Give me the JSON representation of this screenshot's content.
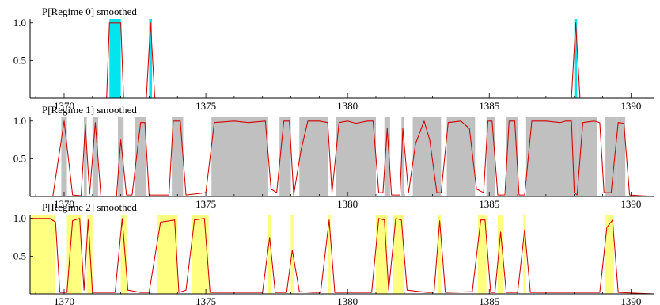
{
  "chart_data": [
    {
      "type": "area",
      "title": "P[Regime 0] smoothed",
      "xlabel": "",
      "ylabel": "",
      "xlim": [
        1368.8,
        1390.8
      ],
      "ylim": [
        0,
        1.05
      ],
      "xticks": [
        "1370",
        "1375",
        "1380",
        "1385",
        "1390"
      ],
      "yticks": [
        "0.5",
        "1.0"
      ],
      "shade_color": "#00e5ee",
      "line_color": "#d40000",
      "shaded_intervals": [
        [
          1371.6,
          1372.0
        ],
        [
          1373.0,
          1373.1
        ],
        [
          1388.0,
          1388.1
        ]
      ],
      "series": [
        {
          "values": [
            [
              1368.8,
              0
            ],
            [
              1371.5,
              0
            ],
            [
              1371.6,
              1.0
            ],
            [
              1372.0,
              1.0
            ],
            [
              1372.1,
              0
            ],
            [
              1372.9,
              0
            ],
            [
              1373.05,
              1.0
            ],
            [
              1373.2,
              0
            ],
            [
              1387.9,
              0
            ],
            [
              1388.05,
              1.0
            ],
            [
              1388.2,
              0
            ],
            [
              1390.8,
              0
            ]
          ]
        }
      ]
    },
    {
      "type": "area",
      "title": "P[Regime 1] smoothed",
      "xlabel": "",
      "ylabel": "",
      "xlim": [
        1368.8,
        1390.8
      ],
      "ylim": [
        0,
        1.05
      ],
      "xticks": [
        "1370",
        "1375",
        "1380",
        "1385",
        "1390"
      ],
      "yticks": [
        "0.5",
        "1.0"
      ],
      "shade_color": "#c0c0c0",
      "line_color": "#d40000",
      "shaded_intervals": [
        [
          1369.9,
          1370.1
        ],
        [
          1370.7,
          1370.8
        ],
        [
          1371.0,
          1371.2
        ],
        [
          1371.9,
          1372.1
        ],
        [
          1372.5,
          1372.9
        ],
        [
          1373.8,
          1374.2
        ],
        [
          1375.2,
          1377.2
        ],
        [
          1377.6,
          1378.0
        ],
        [
          1378.3,
          1379.3
        ],
        [
          1379.6,
          1381.0
        ],
        [
          1381.3,
          1381.5
        ],
        [
          1381.9,
          1382.0
        ],
        [
          1382.3,
          1383.3
        ],
        [
          1383.5,
          1384.5
        ],
        [
          1384.9,
          1385.2
        ],
        [
          1385.6,
          1386.0
        ],
        [
          1386.3,
          1387.6
        ],
        [
          1387.6,
          1388.1
        ],
        [
          1388.1,
          1388.8
        ],
        [
          1389.1,
          1389.5
        ],
        [
          1389.5,
          1389.8
        ]
      ],
      "series": [
        {
          "values": [
            [
              1368.8,
              0
            ],
            [
              1369.6,
              0
            ],
            [
              1370.0,
              1.0
            ],
            [
              1370.3,
              0.02
            ],
            [
              1370.6,
              0.01
            ],
            [
              1370.75,
              0.95
            ],
            [
              1370.9,
              0.03
            ],
            [
              1371.1,
              0.98
            ],
            [
              1371.3,
              0.0
            ],
            [
              1371.85,
              0.0
            ],
            [
              1372.0,
              0.75
            ],
            [
              1372.2,
              0.02
            ],
            [
              1372.4,
              0.02
            ],
            [
              1372.7,
              0.98
            ],
            [
              1372.85,
              0.98
            ],
            [
              1373.0,
              0.02
            ],
            [
              1373.7,
              0.02
            ],
            [
              1373.85,
              1.0
            ],
            [
              1374.1,
              1.0
            ],
            [
              1374.3,
              0.02
            ],
            [
              1375.0,
              0.05
            ],
            [
              1375.3,
              0.98
            ],
            [
              1376.0,
              1.0
            ],
            [
              1376.5,
              0.98
            ],
            [
              1377.1,
              1.0
            ],
            [
              1377.3,
              0.1
            ],
            [
              1377.5,
              0.05
            ],
            [
              1377.75,
              1.0
            ],
            [
              1377.95,
              1.0
            ],
            [
              1378.1,
              0.02
            ],
            [
              1378.35,
              0.6
            ],
            [
              1378.6,
              1.0
            ],
            [
              1379.0,
              1.0
            ],
            [
              1379.3,
              0.98
            ],
            [
              1379.45,
              0.05
            ],
            [
              1379.7,
              0.98
            ],
            [
              1380.0,
              1.0
            ],
            [
              1380.3,
              0.97
            ],
            [
              1380.7,
              1.0
            ],
            [
              1380.9,
              1.0
            ],
            [
              1381.1,
              0.05
            ],
            [
              1381.25,
              0.05
            ],
            [
              1381.4,
              0.9
            ],
            [
              1381.55,
              0.02
            ],
            [
              1381.85,
              0.02
            ],
            [
              1381.95,
              0.9
            ],
            [
              1382.15,
              0.05
            ],
            [
              1382.4,
              0.7
            ],
            [
              1382.7,
              1.0
            ],
            [
              1382.9,
              0.75
            ],
            [
              1383.15,
              0.05
            ],
            [
              1383.3,
              0.05
            ],
            [
              1383.55,
              0.98
            ],
            [
              1384.0,
              1.0
            ],
            [
              1384.3,
              0.9
            ],
            [
              1384.55,
              0.1
            ],
            [
              1384.8,
              0.05
            ],
            [
              1384.95,
              1.0
            ],
            [
              1385.1,
              1.0
            ],
            [
              1385.3,
              0.02
            ],
            [
              1385.55,
              0.02
            ],
            [
              1385.7,
              1.0
            ],
            [
              1385.9,
              1.0
            ],
            [
              1386.05,
              0.02
            ],
            [
              1386.25,
              0.02
            ],
            [
              1386.5,
              1.0
            ],
            [
              1387.0,
              1.0
            ],
            [
              1387.5,
              0.98
            ],
            [
              1387.7,
              1.0
            ],
            [
              1387.9,
              1.0
            ],
            [
              1388.0,
              0.05
            ],
            [
              1388.1,
              0.02
            ],
            [
              1388.3,
              0.98
            ],
            [
              1388.7,
              1.0
            ],
            [
              1388.9,
              0.98
            ],
            [
              1389.05,
              0.05
            ],
            [
              1389.3,
              0.05
            ],
            [
              1389.55,
              0.98
            ],
            [
              1389.75,
              0.97
            ],
            [
              1389.95,
              0.02
            ],
            [
              1390.8,
              0
            ]
          ]
        }
      ]
    },
    {
      "type": "area",
      "title": "P[Regime 2] smoothed",
      "xlabel": "",
      "ylabel": "",
      "xlim": [
        1368.8,
        1390.8
      ],
      "ylim": [
        0,
        1.05
      ],
      "xticks": [
        "1370",
        "1375",
        "1380",
        "1385",
        "1390"
      ],
      "yticks": [
        "0.5",
        "1.0"
      ],
      "shade_color": "#ffff80",
      "line_color": "#d40000",
      "shaded_intervals": [
        [
          1368.8,
          1369.7
        ],
        [
          1370.1,
          1370.6
        ],
        [
          1370.8,
          1371.0
        ],
        [
          1372.0,
          1372.2
        ],
        [
          1373.3,
          1374.0
        ],
        [
          1374.5,
          1375.1
        ],
        [
          1377.2,
          1377.3
        ],
        [
          1378.0,
          1378.1
        ],
        [
          1379.3,
          1379.4
        ],
        [
          1381.0,
          1381.4
        ],
        [
          1381.6,
          1382.0
        ],
        [
          1383.2,
          1383.3
        ],
        [
          1384.6,
          1384.9
        ],
        [
          1385.3,
          1385.5
        ],
        [
          1386.2,
          1386.3
        ],
        [
          1389.1,
          1389.4
        ]
      ],
      "series": [
        {
          "values": [
            [
              1368.8,
              1.0
            ],
            [
              1369.5,
              1.0
            ],
            [
              1369.7,
              0.95
            ],
            [
              1369.85,
              0.02
            ],
            [
              1370.1,
              0.02
            ],
            [
              1370.3,
              0.97
            ],
            [
              1370.55,
              1.0
            ],
            [
              1370.7,
              0.05
            ],
            [
              1370.85,
              0.98
            ],
            [
              1371.0,
              0.02
            ],
            [
              1371.8,
              0.02
            ],
            [
              1372.05,
              1.0
            ],
            [
              1372.25,
              0.05
            ],
            [
              1372.7,
              0.02
            ],
            [
              1373.0,
              0.02
            ],
            [
              1373.4,
              0.95
            ],
            [
              1373.9,
              0.98
            ],
            [
              1374.05,
              0.02
            ],
            [
              1374.3,
              0.05
            ],
            [
              1374.6,
              0.98
            ],
            [
              1374.95,
              1.0
            ],
            [
              1375.15,
              0.02
            ],
            [
              1377.0,
              0.02
            ],
            [
              1377.25,
              0.75
            ],
            [
              1377.45,
              0.02
            ],
            [
              1377.85,
              0.02
            ],
            [
              1378.05,
              0.58
            ],
            [
              1378.3,
              0.03
            ],
            [
              1378.8,
              0.02
            ],
            [
              1379.05,
              0.02
            ],
            [
              1379.35,
              0.98
            ],
            [
              1379.55,
              0.02
            ],
            [
              1380.5,
              0.02
            ],
            [
              1380.85,
              0.02
            ],
            [
              1381.1,
              1.0
            ],
            [
              1381.3,
              0.98
            ],
            [
              1381.45,
              0.05
            ],
            [
              1381.7,
              1.0
            ],
            [
              1381.9,
              0.98
            ],
            [
              1382.1,
              0.05
            ],
            [
              1382.8,
              0.02
            ],
            [
              1383.05,
              0.02
            ],
            [
              1383.25,
              0.97
            ],
            [
              1383.45,
              0.02
            ],
            [
              1384.4,
              0.03
            ],
            [
              1384.7,
              0.98
            ],
            [
              1384.85,
              0.98
            ],
            [
              1385.05,
              0.02
            ],
            [
              1385.2,
              0.02
            ],
            [
              1385.4,
              0.82
            ],
            [
              1385.6,
              0.02
            ],
            [
              1386.0,
              0.02
            ],
            [
              1386.25,
              0.85
            ],
            [
              1386.45,
              0.02
            ],
            [
              1388.9,
              0.02
            ],
            [
              1389.15,
              0.88
            ],
            [
              1389.35,
              0.98
            ],
            [
              1389.55,
              0.02
            ],
            [
              1390.8,
              0
            ]
          ]
        }
      ]
    }
  ]
}
